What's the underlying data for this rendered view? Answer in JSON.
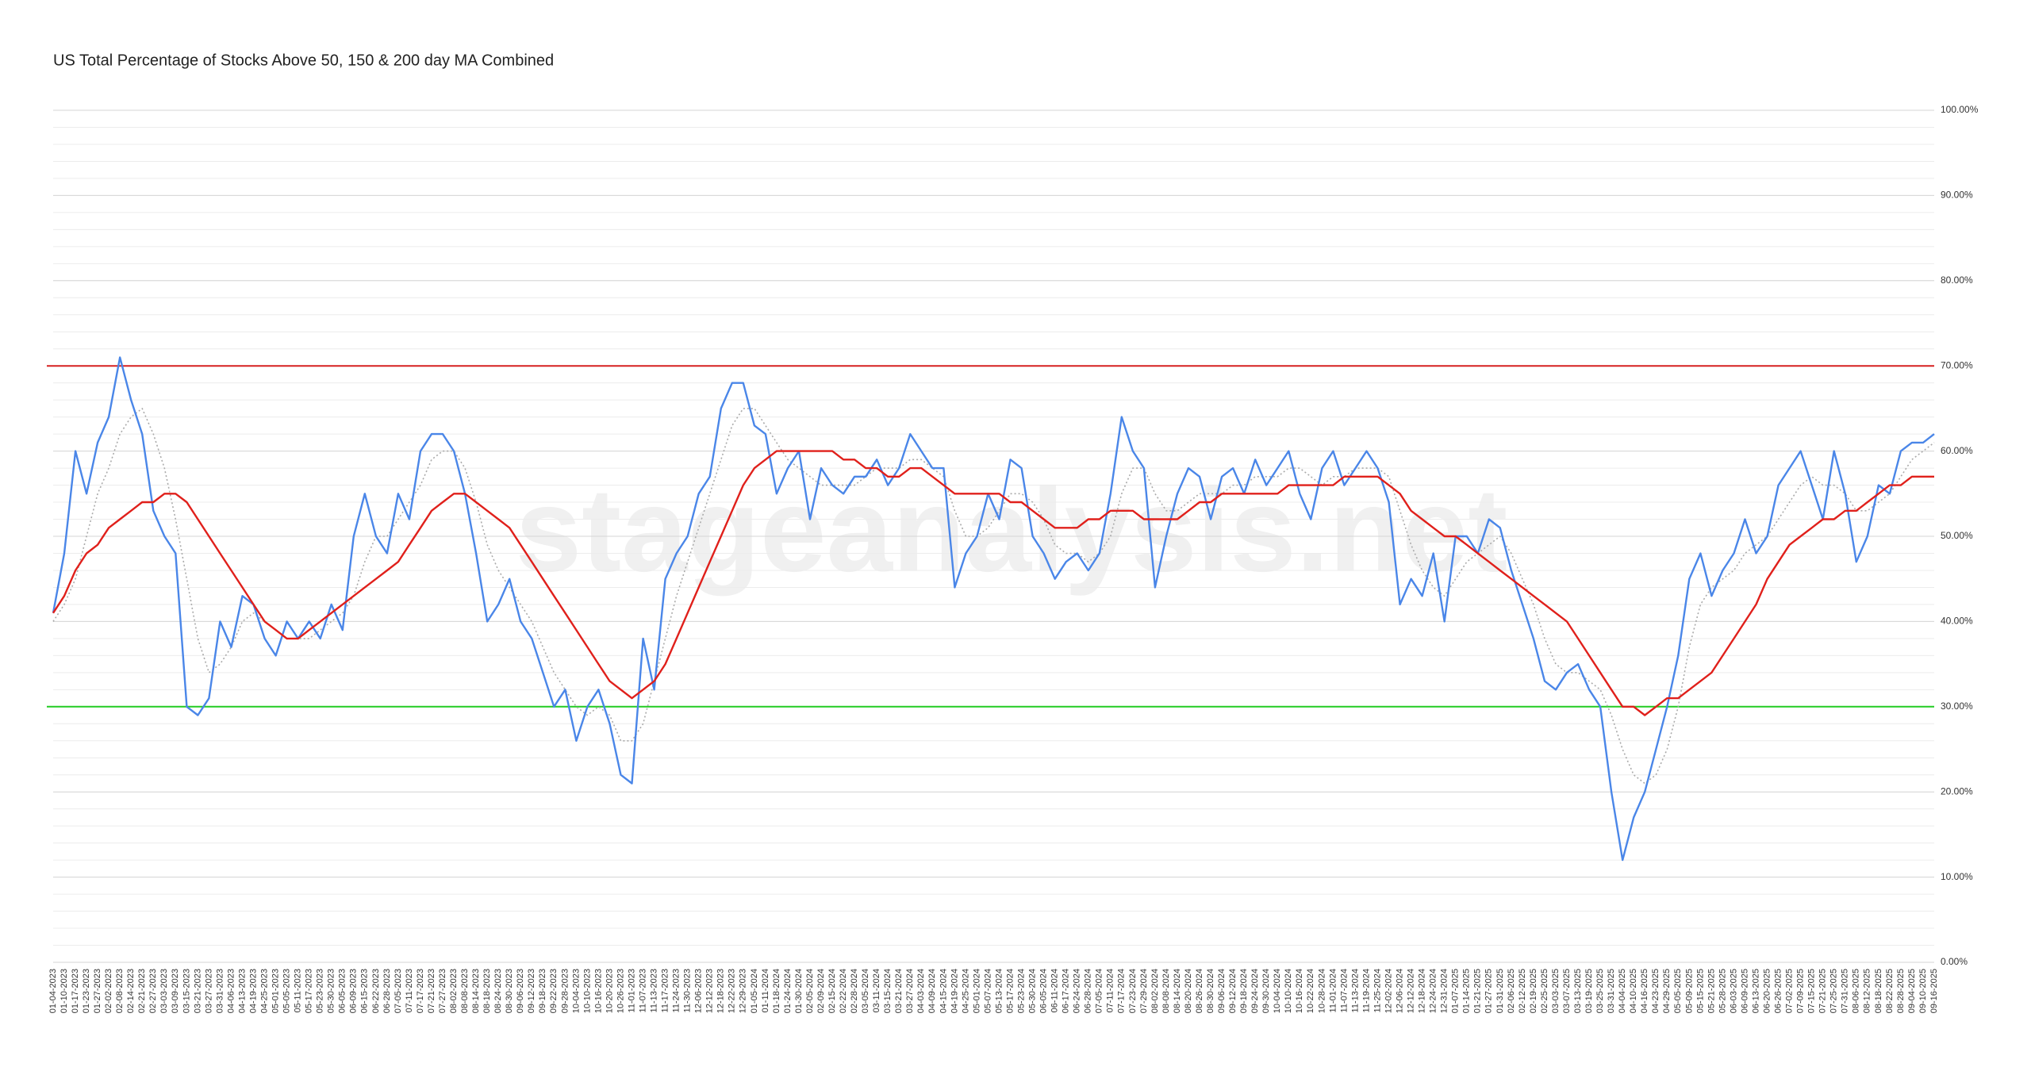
{
  "chart_data": {
    "type": "line",
    "title": "US Total Percentage of Stocks Above 50, 150 & 200 day MA Combined",
    "watermark": "stageanalysis.net",
    "categories": [
      "01-04-2023",
      "01-10-2023",
      "01-17-2023",
      "01-23-2023",
      "01-27-2023",
      "02-02-2023",
      "02-08-2023",
      "02-14-2023",
      "02-21-2023",
      "02-27-2023",
      "03-03-2023",
      "03-09-2023",
      "03-15-2023",
      "03-21-2023",
      "03-27-2023",
      "03-31-2023",
      "04-06-2023",
      "04-13-2023",
      "04-19-2023",
      "04-25-2023",
      "05-01-2023",
      "05-05-2023",
      "05-11-2023",
      "05-17-2023",
      "05-23-2023",
      "05-30-2023",
      "06-05-2023",
      "06-09-2023",
      "06-15-2023",
      "06-22-2023",
      "06-28-2023",
      "07-05-2023",
      "07-11-2023",
      "07-17-2023",
      "07-21-2023",
      "07-27-2023",
      "08-02-2023",
      "08-08-2023",
      "08-14-2023",
      "08-18-2023",
      "08-24-2023",
      "08-30-2023",
      "09-06-2023",
      "09-12-2023",
      "09-18-2023",
      "09-22-2023",
      "09-28-2023",
      "10-04-2023",
      "10-10-2023",
      "10-16-2023",
      "10-20-2023",
      "10-26-2023",
      "11-01-2023",
      "11-07-2023",
      "11-13-2023",
      "11-17-2023",
      "11-24-2023",
      "11-30-2023",
      "12-06-2023",
      "12-12-2023",
      "12-18-2023",
      "12-22-2023",
      "12-29-2023",
      "01-05-2024",
      "01-11-2024",
      "01-18-2024",
      "01-24-2024",
      "01-30-2024",
      "02-05-2024",
      "02-09-2024",
      "02-15-2024",
      "02-22-2024",
      "02-28-2024",
      "03-05-2024",
      "03-11-2024",
      "03-15-2024",
      "03-21-2024",
      "03-27-2024",
      "04-03-2024",
      "04-09-2024",
      "04-15-2024",
      "04-19-2024",
      "04-25-2024",
      "05-01-2024",
      "05-07-2024",
      "05-13-2024",
      "05-17-2024",
      "05-23-2024",
      "05-30-2024",
      "06-05-2024",
      "06-11-2024",
      "06-17-2024",
      "06-24-2024",
      "06-28-2024",
      "07-05-2024",
      "07-11-2024",
      "07-17-2024",
      "07-23-2024",
      "07-29-2024",
      "08-02-2024",
      "08-08-2024",
      "08-14-2024",
      "08-20-2024",
      "08-26-2024",
      "08-30-2024",
      "09-06-2024",
      "09-12-2024",
      "09-18-2024",
      "09-24-2024",
      "09-30-2024",
      "10-04-2024",
      "10-10-2024",
      "10-16-2024",
      "10-22-2024",
      "10-28-2024",
      "11-01-2024",
      "11-07-2024",
      "11-13-2024",
      "11-19-2024",
      "11-25-2024",
      "12-02-2024",
      "12-06-2024",
      "12-12-2024",
      "12-18-2024",
      "12-24-2024",
      "12-31-2024",
      "01-07-2025",
      "01-14-2025",
      "01-21-2025",
      "01-27-2025",
      "01-31-2025",
      "02-06-2025",
      "02-12-2025",
      "02-19-2025",
      "02-25-2025",
      "03-03-2025",
      "03-07-2025",
      "03-13-2025",
      "03-19-2025",
      "03-25-2025",
      "03-31-2025",
      "04-04-2025",
      "04-10-2025",
      "04-16-2025",
      "04-23-2025",
      "04-29-2025",
      "05-05-2025",
      "05-09-2025",
      "05-15-2025",
      "05-21-2025",
      "05-28-2025",
      "06-03-2025",
      "06-09-2025",
      "06-13-2025",
      "06-20-2025",
      "06-26-2025",
      "07-02-2025",
      "07-09-2025",
      "07-15-2025",
      "07-21-2025",
      "07-25-2025",
      "07-31-2025",
      "08-06-2025",
      "08-12-2025",
      "08-18-2025",
      "08-22-2025",
      "08-28-2025",
      "09-04-2025",
      "09-10-2025",
      "09-16-2025"
    ],
    "series": [
      {
        "color": "#aaaaaa",
        "dash": true,
        "values": [
          40,
          42,
          45,
          50,
          55,
          58,
          62,
          64,
          65,
          62,
          58,
          52,
          45,
          38,
          34,
          35,
          37,
          40,
          41,
          40,
          39,
          38,
          38,
          38,
          39,
          40,
          41,
          43,
          47,
          50,
          50,
          52,
          54,
          56,
          59,
          60,
          60,
          58,
          54,
          49,
          46,
          44,
          42,
          40,
          37,
          34,
          32,
          30,
          29,
          30,
          29,
          26,
          26,
          28,
          33,
          38,
          43,
          47,
          51,
          55,
          59,
          63,
          65,
          65,
          63,
          61,
          59,
          58,
          57,
          56,
          56,
          56,
          56,
          57,
          58,
          58,
          58,
          59,
          59,
          58,
          57,
          53,
          50,
          50,
          51,
          53,
          55,
          55,
          54,
          52,
          49,
          48,
          48,
          47,
          48,
          50,
          55,
          58,
          58,
          55,
          53,
          53,
          54,
          55,
          55,
          55,
          56,
          56,
          57,
          57,
          57,
          58,
          58,
          57,
          56,
          57,
          57,
          58,
          58,
          58,
          57,
          53,
          49,
          46,
          44,
          43,
          45,
          47,
          48,
          49,
          50,
          48,
          45,
          42,
          38,
          35,
          34,
          34,
          33,
          32,
          29,
          25,
          22,
          21,
          22,
          25,
          30,
          37,
          42,
          44,
          45,
          46,
          48,
          49,
          50,
          52,
          54,
          56,
          57,
          56,
          56,
          55,
          53,
          53,
          54,
          55,
          57,
          59,
          60,
          61
        ]
      },
      {
        "color": "#4a86e8",
        "values": [
          41,
          48,
          60,
          55,
          61,
          64,
          71,
          66,
          62,
          53,
          50,
          48,
          30,
          29,
          31,
          40,
          37,
          43,
          42,
          38,
          36,
          40,
          38,
          40,
          38,
          42,
          39,
          50,
          55,
          50,
          48,
          55,
          52,
          60,
          62,
          62,
          60,
          55,
          48,
          40,
          42,
          45,
          40,
          38,
          34,
          30,
          32,
          26,
          30,
          32,
          28,
          22,
          21,
          38,
          32,
          45,
          48,
          50,
          55,
          57,
          65,
          68,
          68,
          63,
          62,
          55,
          58,
          60,
          52,
          58,
          56,
          55,
          57,
          57,
          59,
          56,
          58,
          62,
          60,
          58,
          58,
          44,
          48,
          50,
          55,
          52,
          59,
          58,
          50,
          48,
          45,
          47,
          48,
          46,
          48,
          55,
          64,
          60,
          58,
          44,
          50,
          55,
          58,
          57,
          52,
          57,
          58,
          55,
          59,
          56,
          58,
          60,
          55,
          52,
          58,
          60,
          56,
          58,
          60,
          58,
          54,
          42,
          45,
          43,
          48,
          40,
          50,
          50,
          48,
          52,
          51,
          46,
          42,
          38,
          33,
          32,
          34,
          35,
          32,
          30,
          20,
          12,
          17,
          20,
          25,
          30,
          36,
          45,
          48,
          43,
          46,
          48,
          52,
          48,
          50,
          56,
          58,
          60,
          56,
          52,
          60,
          55,
          47,
          50,
          56,
          55,
          60,
          61,
          61,
          62
        ]
      },
      {
        "color": "#e0201b",
        "values": [
          41,
          43,
          46,
          48,
          49,
          51,
          52,
          53,
          54,
          54,
          55,
          55,
          54,
          52,
          50,
          48,
          46,
          44,
          42,
          40,
          39,
          38,
          38,
          39,
          40,
          41,
          42,
          43,
          44,
          45,
          46,
          47,
          49,
          51,
          53,
          54,
          55,
          55,
          54,
          53,
          52,
          51,
          49,
          47,
          45,
          43,
          41,
          39,
          37,
          35,
          33,
          32,
          31,
          32,
          33,
          35,
          38,
          41,
          44,
          47,
          50,
          53,
          56,
          58,
          59,
          60,
          60,
          60,
          60,
          60,
          60,
          59,
          59,
          58,
          58,
          57,
          57,
          58,
          58,
          57,
          56,
          55,
          55,
          55,
          55,
          55,
          54,
          54,
          53,
          52,
          51,
          51,
          51,
          52,
          52,
          53,
          53,
          53,
          52,
          52,
          52,
          52,
          53,
          54,
          54,
          55,
          55,
          55,
          55,
          55,
          55,
          56,
          56,
          56,
          56,
          56,
          57,
          57,
          57,
          57,
          56,
          55,
          53,
          52,
          51,
          50,
          50,
          49,
          48,
          47,
          46,
          45,
          44,
          43,
          42,
          41,
          40,
          38,
          36,
          34,
          32,
          30,
          30,
          29,
          30,
          31,
          31,
          32,
          33,
          34,
          36,
          38,
          40,
          42,
          45,
          47,
          49,
          50,
          51,
          52,
          52,
          53,
          53,
          54,
          55,
          56,
          56,
          57,
          57,
          57
        ]
      }
    ],
    "reference_lines": [
      {
        "value": 70,
        "color": "#d62020"
      },
      {
        "value": 30,
        "color": "#22cc22"
      }
    ],
    "ylim": [
      0,
      100
    ],
    "yticks": [
      {
        "value": 0,
        "label": "0.00%"
      },
      {
        "value": 10,
        "label": "10.00%"
      },
      {
        "value": 20,
        "label": "20.00%"
      },
      {
        "value": 30,
        "label": "30.00%"
      },
      {
        "value": 40,
        "label": "40.00%"
      },
      {
        "value": 50,
        "label": "50.00%"
      },
      {
        "value": 60,
        "label": "60.00%"
      },
      {
        "value": 70,
        "label": "70.00%"
      },
      {
        "value": 80,
        "label": "80.00%"
      },
      {
        "value": 90,
        "label": "90.00%"
      },
      {
        "value": 100,
        "label": "100.00%"
      }
    ],
    "grid": true,
    "minor_grid_step": 2,
    "y_axis_side": "right"
  }
}
